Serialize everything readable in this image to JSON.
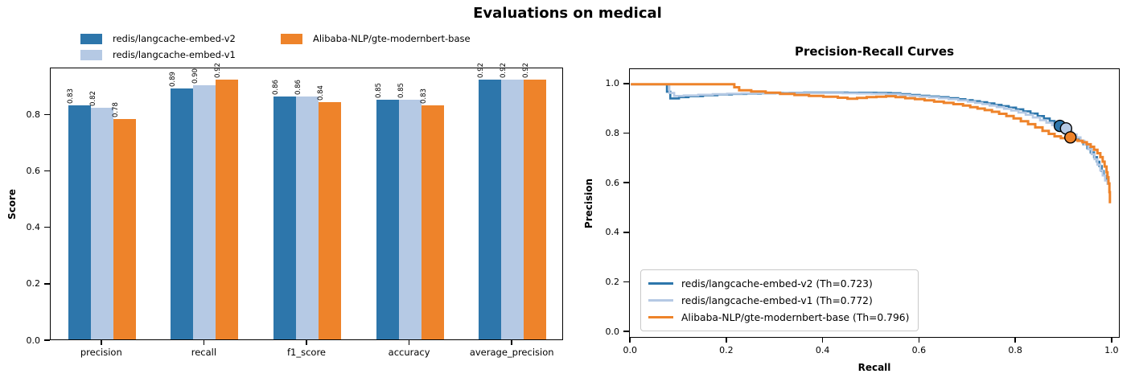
{
  "suptitle": "Evaluations on medical",
  "palette": {
    "v2": "#2d76ab",
    "v1": "#b5c9e4",
    "gte": "#ee832a",
    "marker_edge": "#000000",
    "spine": "#000000"
  },
  "chart_data": [
    {
      "type": "bar",
      "title": "",
      "xlabel": "",
      "ylabel": "Score",
      "ylim": [
        0,
        0.966
      ],
      "yticks": [
        0.0,
        0.2,
        0.4,
        0.6,
        0.8
      ],
      "grid": false,
      "legend_position": "above-left, no frame, 2 columns",
      "categories": [
        "precision",
        "recall",
        "f1_score",
        "accuracy",
        "average_precision"
      ],
      "legend": [
        {
          "label": "redis/langcache-embed-v2",
          "color_key": "v2"
        },
        {
          "label": "redis/langcache-embed-v1",
          "color_key": "v1"
        },
        {
          "label": "Alibaba-NLP/gte-modernbert-base",
          "color_key": "gte"
        }
      ],
      "series": [
        {
          "name": "redis/langcache-embed-v2",
          "color_key": "v2",
          "values": [
            0.83,
            0.89,
            0.86,
            0.85,
            0.92
          ]
        },
        {
          "name": "redis/langcache-embed-v1",
          "color_key": "v1",
          "values": [
            0.82,
            0.9,
            0.86,
            0.85,
            0.92
          ]
        },
        {
          "name": "Alibaba-NLP/gte-modernbert-base",
          "color_key": "gte",
          "values": [
            0.78,
            0.92,
            0.84,
            0.83,
            0.92
          ]
        }
      ]
    },
    {
      "type": "line",
      "title": "Precision-Recall Curves",
      "xlabel": "Recall",
      "ylabel": "Precision",
      "xticks": [
        0.0,
        0.2,
        0.4,
        0.6,
        0.8,
        1.0
      ],
      "yticks": [
        0.0,
        0.2,
        0.4,
        0.6,
        0.8,
        1.0
      ],
      "xlim": [
        -0.002,
        1.012
      ],
      "ylim": [
        -0.016,
        1.061
      ],
      "grid": false,
      "legend_position": "lower left, framed",
      "series": [
        {
          "legend_label": "redis/langcache-embed-v2 (Th=0.723)",
          "color_key": "v2",
          "threshold": 0.723,
          "line_width": 2.6,
          "marker": [
            0.891,
            0.832
          ],
          "points": [
            [
              0.0,
              1.0
            ],
            [
              0.068,
              1.0
            ],
            [
              0.075,
              0.97
            ],
            [
              0.082,
              0.943
            ],
            [
              0.1,
              0.948
            ],
            [
              0.12,
              0.952
            ],
            [
              0.15,
              0.956
            ],
            [
              0.18,
              0.959
            ],
            [
              0.21,
              0.961
            ],
            [
              0.24,
              0.962
            ],
            [
              0.27,
              0.964
            ],
            [
              0.3,
              0.965
            ],
            [
              0.33,
              0.966
            ],
            [
              0.36,
              0.967
            ],
            [
              0.39,
              0.967
            ],
            [
              0.42,
              0.967
            ],
            [
              0.45,
              0.966
            ],
            [
              0.48,
              0.966
            ],
            [
              0.51,
              0.965
            ],
            [
              0.54,
              0.964
            ],
            [
              0.56,
              0.96
            ],
            [
              0.58,
              0.957
            ],
            [
              0.6,
              0.954
            ],
            [
              0.62,
              0.951
            ],
            [
              0.64,
              0.948
            ],
            [
              0.66,
              0.944
            ],
            [
              0.68,
              0.94
            ],
            [
              0.695,
              0.936
            ],
            [
              0.71,
              0.932
            ],
            [
              0.725,
              0.928
            ],
            [
              0.74,
              0.923
            ],
            [
              0.755,
              0.917
            ],
            [
              0.77,
              0.912
            ],
            [
              0.785,
              0.906
            ],
            [
              0.8,
              0.899
            ],
            [
              0.815,
              0.891
            ],
            [
              0.83,
              0.882
            ],
            [
              0.845,
              0.872
            ],
            [
              0.858,
              0.862
            ],
            [
              0.87,
              0.852
            ],
            [
              0.88,
              0.842
            ],
            [
              0.89,
              0.83
            ],
            [
              0.9,
              0.818
            ],
            [
              0.908,
              0.808
            ],
            [
              0.916,
              0.797
            ],
            [
              0.924,
              0.785
            ],
            [
              0.932,
              0.772
            ],
            [
              0.94,
              0.758
            ],
            [
              0.948,
              0.742
            ],
            [
              0.955,
              0.725
            ],
            [
              0.962,
              0.706
            ],
            [
              0.968,
              0.688
            ],
            [
              0.973,
              0.67
            ],
            [
              0.978,
              0.65
            ],
            [
              0.982,
              0.632
            ],
            [
              0.986,
              0.615
            ],
            [
              0.99,
              0.598
            ]
          ]
        },
        {
          "legend_label": "redis/langcache-embed-v1 (Th=0.772)",
          "color_key": "v1",
          "threshold": 0.772,
          "line_width": 2.6,
          "marker": [
            0.904,
            0.822
          ],
          "points": [
            [
              0.0,
              1.0
            ],
            [
              0.073,
              1.0
            ],
            [
              0.08,
              0.965
            ],
            [
              0.09,
              0.953
            ],
            [
              0.11,
              0.955
            ],
            [
              0.14,
              0.958
            ],
            [
              0.17,
              0.96
            ],
            [
              0.2,
              0.962
            ],
            [
              0.23,
              0.963
            ],
            [
              0.26,
              0.964
            ],
            [
              0.29,
              0.964
            ],
            [
              0.32,
              0.965
            ],
            [
              0.35,
              0.965
            ],
            [
              0.38,
              0.965
            ],
            [
              0.41,
              0.965
            ],
            [
              0.44,
              0.964
            ],
            [
              0.47,
              0.963
            ],
            [
              0.5,
              0.962
            ],
            [
              0.53,
              0.96
            ],
            [
              0.56,
              0.957
            ],
            [
              0.58,
              0.954
            ],
            [
              0.6,
              0.951
            ],
            [
              0.62,
              0.948
            ],
            [
              0.64,
              0.944
            ],
            [
              0.66,
              0.94
            ],
            [
              0.68,
              0.935
            ],
            [
              0.7,
              0.93
            ],
            [
              0.715,
              0.925
            ],
            [
              0.73,
              0.92
            ],
            [
              0.745,
              0.914
            ],
            [
              0.76,
              0.908
            ],
            [
              0.775,
              0.901
            ],
            [
              0.79,
              0.894
            ],
            [
              0.805,
              0.886
            ],
            [
              0.82,
              0.877
            ],
            [
              0.835,
              0.866
            ],
            [
              0.85,
              0.855
            ],
            [
              0.863,
              0.845
            ],
            [
              0.875,
              0.835
            ],
            [
              0.887,
              0.826
            ],
            [
              0.898,
              0.82
            ],
            [
              0.908,
              0.81
            ],
            [
              0.917,
              0.798
            ],
            [
              0.926,
              0.786
            ],
            [
              0.934,
              0.772
            ],
            [
              0.942,
              0.757
            ],
            [
              0.95,
              0.738
            ],
            [
              0.957,
              0.718
            ],
            [
              0.963,
              0.698
            ],
            [
              0.969,
              0.676
            ],
            [
              0.975,
              0.652
            ],
            [
              0.98,
              0.632
            ],
            [
              0.985,
              0.612
            ],
            [
              0.99,
              0.594
            ]
          ]
        },
        {
          "legend_label": "Alibaba-NLP/gte-modernbert-base (Th=0.796)",
          "color_key": "gte",
          "threshold": 0.796,
          "line_width": 3,
          "marker": [
            0.913,
            0.786
          ],
          "points": [
            [
              0.0,
              1.0
            ],
            [
              0.205,
              1.0
            ],
            [
              0.215,
              0.988
            ],
            [
              0.225,
              0.976
            ],
            [
              0.25,
              0.971
            ],
            [
              0.28,
              0.966
            ],
            [
              0.31,
              0.961
            ],
            [
              0.34,
              0.957
            ],
            [
              0.37,
              0.953
            ],
            [
              0.4,
              0.95
            ],
            [
              0.43,
              0.946
            ],
            [
              0.45,
              0.942
            ],
            [
              0.47,
              0.945
            ],
            [
              0.49,
              0.948
            ],
            [
              0.51,
              0.95
            ],
            [
              0.53,
              0.952
            ],
            [
              0.55,
              0.948
            ],
            [
              0.57,
              0.944
            ],
            [
              0.59,
              0.94
            ],
            [
              0.61,
              0.935
            ],
            [
              0.63,
              0.93
            ],
            [
              0.65,
              0.925
            ],
            [
              0.67,
              0.92
            ],
            [
              0.69,
              0.914
            ],
            [
              0.705,
              0.908
            ],
            [
              0.72,
              0.902
            ],
            [
              0.735,
              0.896
            ],
            [
              0.75,
              0.889
            ],
            [
              0.765,
              0.881
            ],
            [
              0.78,
              0.872
            ],
            [
              0.795,
              0.862
            ],
            [
              0.81,
              0.851
            ],
            [
              0.825,
              0.839
            ],
            [
              0.84,
              0.826
            ],
            [
              0.855,
              0.812
            ],
            [
              0.868,
              0.8
            ],
            [
              0.88,
              0.79
            ],
            [
              0.893,
              0.783
            ],
            [
              0.905,
              0.78
            ],
            [
              0.917,
              0.776
            ],
            [
              0.928,
              0.772
            ],
            [
              0.938,
              0.766
            ],
            [
              0.947,
              0.758
            ],
            [
              0.955,
              0.748
            ],
            [
              0.962,
              0.736
            ],
            [
              0.969,
              0.722
            ],
            [
              0.975,
              0.706
            ],
            [
              0.98,
              0.688
            ],
            [
              0.984,
              0.668
            ],
            [
              0.988,
              0.645
            ],
            [
              0.99,
              0.625
            ],
            [
              0.992,
              0.6
            ],
            [
              0.994,
              0.565
            ],
            [
              0.995,
              0.52
            ]
          ]
        }
      ]
    }
  ]
}
